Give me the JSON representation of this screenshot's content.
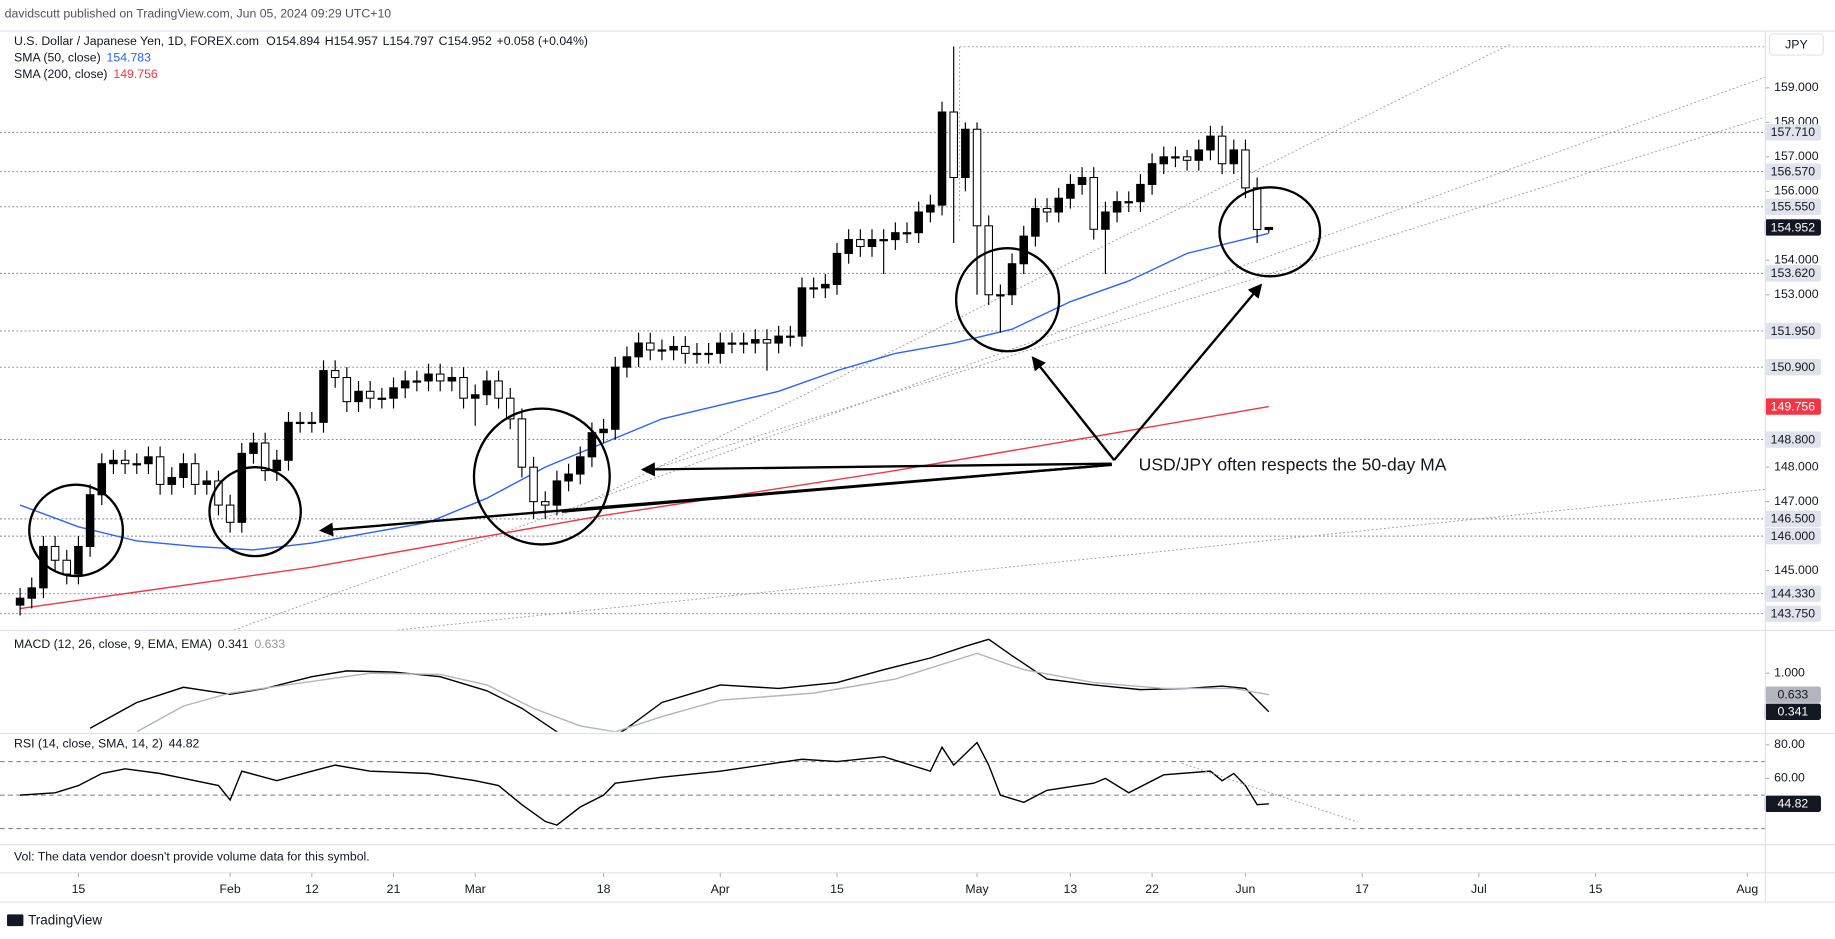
{
  "header": {
    "publisher": "davidscutt published on TradingView.com, Jun 05, 2024 09:29 UTC+10",
    "symbol": "U.S. Dollar / Japanese Yen, 1D, FOREX.com",
    "ohlc_prefixes": [
      "O",
      "H",
      "L",
      "C"
    ],
    "change": "+0.058 (+0.04%)",
    "currency": "JPY",
    "annotation": "USD/JPY often respects the 50-day MA",
    "volume_note": "Vol: The data vendor doesn't provide volume data for this symbol.",
    "logo": "TradingView"
  },
  "chart_data": [
    {
      "type": "candlestick",
      "up_color": "#000000",
      "down_color": "#ffffff",
      "wick_color": "#000000",
      "xlim": [
        -1.72,
        149.5
      ],
      "xticks": [
        {
          "value": 5,
          "label": "15"
        },
        {
          "value": 18,
          "label": "Feb"
        },
        {
          "value": 25,
          "label": "12"
        },
        {
          "value": 32,
          "label": "21"
        },
        {
          "value": 39,
          "label": "Mar"
        },
        {
          "value": 50,
          "label": "18"
        },
        {
          "value": 60,
          "label": "Apr"
        },
        {
          "value": 70,
          "label": "15"
        },
        {
          "value": 82,
          "label": "May"
        },
        {
          "value": 90,
          "label": "13"
        },
        {
          "value": 97,
          "label": "22"
        },
        {
          "value": 105,
          "label": "Jun"
        },
        {
          "value": 115,
          "label": "17"
        },
        {
          "value": 125,
          "label": "Jul"
        },
        {
          "value": 135,
          "label": "15"
        },
        {
          "value": 148,
          "label": "Aug"
        }
      ],
      "ylim": [
        143.28,
        160.53
      ],
      "yticks": [
        {
          "value": 145,
          "label": "145.000"
        },
        {
          "value": 147,
          "label": "147.000"
        },
        {
          "value": 148,
          "label": "148.000"
        },
        {
          "value": 153,
          "label": "153.000"
        },
        {
          "value": 154,
          "label": "154.000"
        },
        {
          "value": 156,
          "label": "156.000"
        },
        {
          "value": 157,
          "label": "157.000"
        },
        {
          "value": 158,
          "label": "158.000"
        },
        {
          "value": 159,
          "label": "159.000"
        }
      ],
      "levels": [
        {
          "value": 157.71,
          "label": "157.710"
        },
        {
          "value": 156.57,
          "label": "156.570"
        },
        {
          "value": 155.55,
          "label": "155.550"
        },
        {
          "value": 153.62,
          "label": "153.620"
        },
        {
          "value": 151.95,
          "label": "151.950"
        },
        {
          "value": 150.9,
          "label": "150.900"
        },
        {
          "value": 148.8,
          "label": "148.800"
        },
        {
          "value": 146.5,
          "label": "146.500"
        },
        {
          "value": 146.0,
          "label": "146.000"
        },
        {
          "value": 144.33,
          "label": "144.330"
        },
        {
          "value": 143.75,
          "label": "143.750"
        }
      ],
      "open": [
        144.0,
        144.2,
        144.5,
        145.7,
        145.3,
        144.9,
        145.7,
        147.2,
        148.1,
        148.2,
        148.1,
        148.1,
        148.3,
        147.5,
        147.7,
        148.1,
        147.5,
        147.6,
        146.9,
        146.4,
        148.4,
        148.7,
        147.9,
        148.2,
        149.3,
        149.3,
        149.3,
        150.8,
        150.6,
        149.9,
        150.2,
        150.0,
        150.0,
        150.3,
        150.5,
        150.5,
        150.7,
        150.5,
        150.6,
        150.0,
        150.1,
        150.5,
        150.0,
        149.4,
        148.0,
        147.0,
        146.9,
        147.6,
        147.8,
        148.3,
        149.0,
        149.1,
        150.9,
        151.2,
        151.6,
        151.4,
        151.4,
        151.5,
        151.3,
        151.3,
        151.3,
        151.6,
        151.6,
        151.6,
        151.7,
        151.6,
        151.8,
        151.8,
        153.2,
        153.2,
        153.3,
        154.2,
        154.6,
        154.4,
        154.6,
        154.6,
        154.8,
        154.8,
        155.4,
        155.6,
        158.3,
        156.4,
        157.8,
        155.0,
        153.0,
        153.0,
        153.9,
        154.7,
        155.5,
        155.4,
        155.8,
        156.2,
        156.4,
        154.9,
        155.4,
        155.7,
        155.7,
        156.2,
        156.8,
        157.0,
        157.0,
        156.9,
        157.2,
        157.6,
        156.8,
        157.2,
        156.1,
        154.894
      ],
      "high": [
        144.5,
        144.8,
        146.0,
        146.0,
        145.6,
        146.0,
        147.5,
        148.4,
        148.5,
        148.5,
        148.4,
        148.6,
        148.6,
        148.0,
        148.4,
        148.4,
        147.9,
        147.9,
        147.2,
        148.7,
        149.0,
        149.0,
        148.5,
        149.6,
        149.6,
        149.6,
        151.1,
        151.1,
        150.9,
        150.5,
        150.5,
        150.3,
        150.6,
        150.8,
        150.8,
        151.0,
        151.0,
        150.9,
        150.9,
        150.4,
        150.8,
        150.8,
        150.3,
        149.7,
        148.3,
        147.3,
        147.9,
        148.1,
        148.6,
        149.3,
        149.4,
        151.2,
        151.5,
        151.9,
        151.9,
        151.7,
        151.8,
        151.8,
        151.6,
        151.6,
        151.9,
        151.9,
        151.9,
        152.0,
        152.0,
        152.1,
        152.1,
        153.5,
        153.5,
        153.6,
        154.5,
        154.9,
        154.9,
        154.9,
        154.9,
        155.1,
        155.1,
        155.7,
        155.9,
        158.6,
        160.2,
        158.0,
        158.0,
        155.3,
        153.3,
        154.2,
        155.0,
        155.8,
        155.8,
        156.1,
        156.5,
        156.7,
        156.7,
        155.7,
        156.0,
        156.0,
        156.5,
        157.1,
        157.3,
        157.3,
        157.2,
        157.5,
        157.9,
        157.9,
        157.5,
        157.5,
        156.4,
        154.957
      ],
      "low": [
        143.7,
        143.9,
        144.2,
        145.0,
        144.6,
        144.6,
        145.4,
        146.9,
        147.8,
        147.8,
        147.8,
        147.8,
        147.2,
        147.2,
        147.4,
        147.2,
        147.2,
        146.6,
        146.1,
        146.1,
        148.1,
        147.6,
        147.6,
        147.9,
        149.0,
        149.0,
        149.0,
        150.3,
        149.6,
        149.6,
        149.7,
        149.7,
        149.7,
        150.0,
        150.2,
        150.2,
        150.2,
        150.2,
        149.7,
        149.2,
        149.8,
        149.7,
        149.1,
        147.7,
        146.5,
        146.5,
        146.6,
        147.3,
        147.5,
        148.0,
        148.7,
        148.8,
        150.6,
        150.9,
        151.1,
        151.1,
        151.1,
        151.0,
        151.0,
        151.0,
        151.0,
        151.3,
        151.3,
        151.3,
        150.8,
        151.3,
        151.5,
        151.5,
        152.9,
        152.9,
        153.0,
        153.9,
        154.1,
        154.1,
        153.6,
        154.3,
        154.5,
        154.5,
        155.1,
        155.3,
        154.5,
        156.0,
        153.0,
        152.7,
        151.9,
        152.7,
        153.6,
        154.4,
        155.1,
        155.1,
        155.5,
        155.9,
        154.6,
        153.6,
        155.1,
        155.4,
        155.4,
        155.9,
        156.5,
        156.7,
        156.6,
        156.6,
        156.9,
        156.5,
        156.5,
        155.8,
        154.5,
        154.797
      ],
      "close": [
        144.2,
        144.5,
        145.7,
        145.3,
        144.9,
        145.7,
        147.2,
        148.1,
        148.2,
        148.1,
        148.1,
        148.3,
        147.5,
        147.7,
        148.1,
        147.5,
        147.6,
        146.9,
        146.4,
        148.4,
        148.7,
        147.9,
        148.2,
        149.3,
        149.3,
        149.3,
        150.8,
        150.6,
        149.9,
        150.2,
        150.0,
        150.0,
        150.3,
        150.5,
        150.5,
        150.7,
        150.5,
        150.6,
        150.0,
        150.1,
        150.5,
        150.0,
        149.4,
        148.0,
        147.0,
        146.9,
        147.6,
        147.8,
        148.3,
        149.0,
        149.1,
        150.9,
        151.2,
        151.6,
        151.4,
        151.4,
        151.5,
        151.3,
        151.3,
        151.3,
        151.6,
        151.6,
        151.6,
        151.7,
        151.6,
        151.8,
        151.8,
        153.2,
        153.2,
        153.3,
        154.2,
        154.6,
        154.4,
        154.6,
        154.6,
        154.8,
        154.8,
        155.4,
        155.6,
        158.3,
        156.4,
        157.8,
        155.0,
        153.0,
        153.0,
        153.9,
        154.7,
        155.5,
        155.4,
        155.8,
        156.2,
        156.4,
        154.9,
        155.4,
        155.7,
        155.7,
        156.2,
        156.8,
        157.0,
        157.0,
        156.9,
        157.2,
        157.6,
        156.8,
        157.2,
        156.1,
        154.894,
        154.952
      ],
      "series": [
        {
          "name": "SMA (50, close)",
          "color": "#2962ff",
          "x": [
            0,
            5,
            10,
            15,
            20,
            25,
            30,
            35,
            40,
            45,
            50,
            55,
            60,
            65,
            70,
            75,
            80,
            85,
            90,
            95,
            100,
            107
          ],
          "values": [
            146.9,
            146.27,
            145.86,
            145.7,
            145.6,
            145.8,
            146.1,
            146.4,
            147.1,
            148.0,
            148.7,
            149.4,
            149.8,
            150.2,
            150.8,
            151.3,
            151.6,
            152.0,
            152.8,
            153.4,
            154.2,
            154.783
          ]
        },
        {
          "name": "SMA (200, close)",
          "color": "#f23645",
          "x": [
            0,
            25,
            50,
            75,
            107
          ],
          "values": [
            143.9,
            145.1,
            146.6,
            147.9,
            149.756
          ]
        }
      ]
    },
    {
      "type": "line",
      "title": "MACD (12, 26, close, 9, EMA, EMA)",
      "ylim": [
        0,
        1.7
      ],
      "yticks": [
        {
          "value": 1,
          "label": "1.000"
        }
      ],
      "series": [
        {
          "color": "#000000",
          "x": [
            6,
            10,
            14,
            18,
            21,
            25,
            28,
            32,
            36,
            40,
            43,
            46,
            48,
            50,
            52,
            55,
            60,
            65,
            70,
            74,
            78,
            81,
            83,
            85,
            88,
            92,
            96,
            100,
            103,
            105,
            107
          ],
          "values": [
            0.06,
            0.5,
            0.76,
            0.64,
            0.74,
            0.94,
            1.04,
            1.02,
            0.94,
            0.7,
            0.4,
            0.0,
            -0.3,
            -0.2,
            0.06,
            0.5,
            0.8,
            0.74,
            0.84,
            1.06,
            1.26,
            1.46,
            1.58,
            1.3,
            0.9,
            0.8,
            0.72,
            0.74,
            0.78,
            0.74,
            0.341
          ]
        },
        {
          "color": "#b2b5be",
          "x": [
            10,
            14,
            18,
            25,
            30,
            36,
            40,
            44,
            48,
            51,
            55,
            60,
            68,
            75,
            82,
            86,
            92,
            98,
            104,
            107
          ],
          "values": [
            0.0,
            0.44,
            0.66,
            0.86,
            1.0,
            0.98,
            0.8,
            0.4,
            0.1,
            0.0,
            0.26,
            0.54,
            0.66,
            0.9,
            1.34,
            1.06,
            0.84,
            0.74,
            0.74,
            0.633
          ]
        }
      ]
    },
    {
      "type": "line",
      "title": "RSI (14, close, SMA, 14, 2)",
      "ylim": [
        21.43,
        85.71
      ],
      "yticks": [
        {
          "value": 80,
          "label": "80.00"
        },
        {
          "value": 60,
          "label": "60.00"
        }
      ],
      "bands": [
        70,
        50,
        30
      ],
      "series": [
        {
          "color": "#000000",
          "x": [
            0,
            3,
            5,
            7,
            9,
            12,
            14,
            17,
            18,
            19,
            22,
            25,
            27,
            30,
            35,
            39,
            41,
            43,
            45,
            46,
            48,
            50,
            51,
            55,
            60,
            67,
            70,
            74,
            78,
            79,
            80,
            82,
            83,
            84,
            86,
            88,
            92,
            93,
            95,
            98,
            102,
            103,
            104,
            105,
            106,
            107
          ],
          "values": [
            50,
            51.4,
            55.7,
            62.9,
            65.7,
            62.9,
            60,
            55.7,
            47.1,
            64.3,
            58.6,
            64.3,
            67.9,
            64.3,
            62.9,
            58.6,
            55.7,
            44.3,
            34.3,
            32.1,
            42.9,
            50,
            57.1,
            60.7,
            64.3,
            71.4,
            70,
            72.9,
            64.3,
            78.6,
            67.9,
            81.4,
            67.9,
            50,
            45.7,
            52.9,
            57.1,
            60,
            51.4,
            62.1,
            64.3,
            58.6,
            62.9,
            55.7,
            44.3,
            44.82
          ]
        }
      ]
    }
  ]
}
